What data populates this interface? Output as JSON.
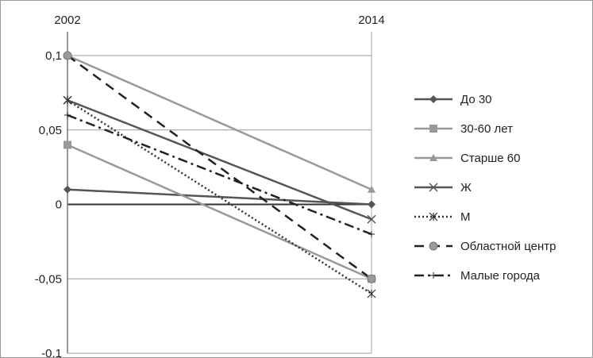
{
  "chart_data": {
    "type": "line",
    "x": [
      "2002",
      "2014"
    ],
    "ylim": [
      -0.1,
      0.1
    ],
    "yticks": [
      {
        "value": 0.1,
        "label": "0,1"
      },
      {
        "value": 0.05,
        "label": "0,05"
      },
      {
        "value": 0,
        "label": "0"
      },
      {
        "value": -0.05,
        "label": "-0,05"
      },
      {
        "value": -0.1,
        "label": "-0.1"
      }
    ],
    "grid": true,
    "legend_position": "right",
    "title": "",
    "xlabel": "",
    "ylabel": "",
    "series": [
      {
        "name": "До 30",
        "values": [
          0.01,
          0.0
        ],
        "color": "#555555",
        "dash": "",
        "marker": "diamond",
        "width": 2.5
      },
      {
        "name": "30-60 лет",
        "values": [
          0.04,
          -0.05
        ],
        "color": "#999999",
        "dash": "",
        "marker": "square",
        "width": 2.5
      },
      {
        "name": "Старше 60",
        "values": [
          0.1,
          0.01
        ],
        "color": "#999999",
        "dash": "",
        "marker": "triangle",
        "width": 2.5
      },
      {
        "name": "Ж",
        "values": [
          0.07,
          -0.01
        ],
        "color": "#555555",
        "dash": "",
        "marker": "x",
        "width": 2.5
      },
      {
        "name": "М",
        "values": [
          0.07,
          -0.06
        ],
        "color": "#333333",
        "dash": "2,3",
        "marker": "asterisk",
        "width": 2.5
      },
      {
        "name": "Областной центр",
        "values": [
          0.1,
          -0.05
        ],
        "color": "#222222",
        "dash": "12,8",
        "marker": "circle",
        "width": 2.5
      },
      {
        "name": "Малые города",
        "values": [
          0.06,
          -0.02
        ],
        "color": "#222222",
        "dash": "12,5,3,5",
        "marker": "plus",
        "width": 2.5
      }
    ]
  }
}
